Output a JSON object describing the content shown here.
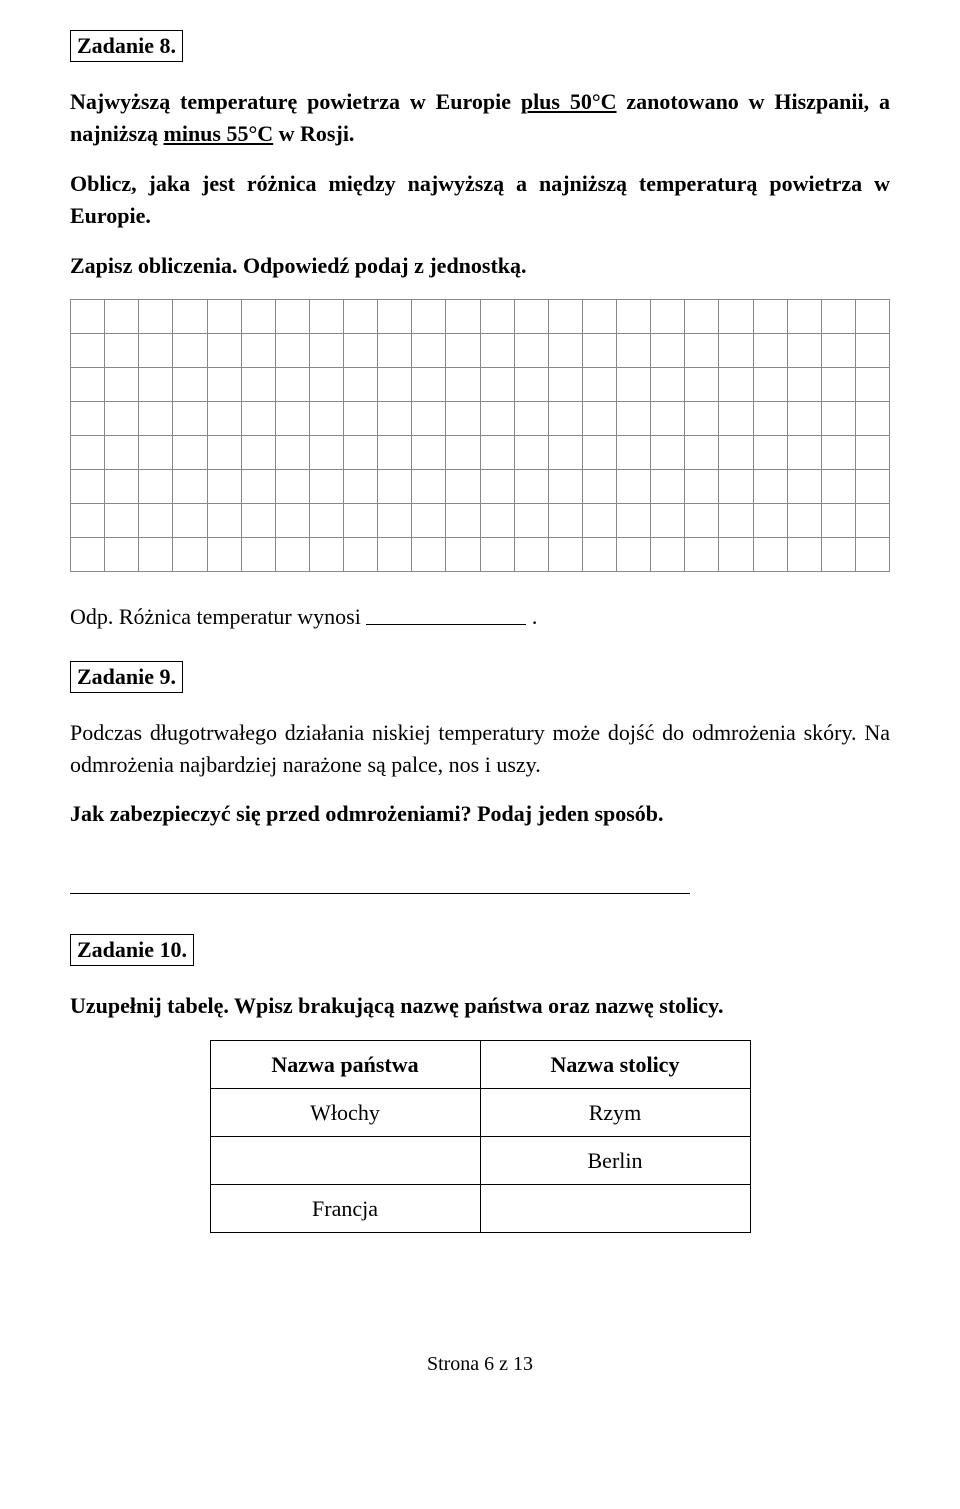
{
  "task8": {
    "label": "Zadanie 8.",
    "prefix": "Najwyższą temperaturę powietrza w Europie ",
    "plus": "plus 50°C",
    "mid1": " zanotowano w Hiszpanii, a najniższą ",
    "minus": "minus 55°C",
    "mid2": " w Rosji.",
    "instr": "Oblicz, jaka jest różnica między najwyższą a najniższą temperaturą powietrza w Europie.",
    "instr2": "Zapisz obliczenia. Odpowiedź podaj z jednostką.",
    "answer": "Odp. Różnica temperatur wynosi ",
    "grid": {
      "rows": 8,
      "cols": 24
    }
  },
  "task9": {
    "label": "Zadanie 9.",
    "p1": "Podczas długotrwałego działania niskiej temperatury może dojść do odmrożenia skóry. Na odmrożenia najbardziej narażone są palce, nos i uszy.",
    "q": "Jak zabezpieczyć się przed odmrożeniami? Podaj jeden sposób."
  },
  "task10": {
    "label": "Zadanie 10.",
    "instr": "Uzupełnij tabelę. Wpisz brakującą nazwę państwa oraz nazwę stolicy.",
    "table": {
      "header_a": "Nazwa państwa",
      "header_b": "Nazwa stolicy",
      "rows": [
        {
          "a": "Włochy",
          "b": "Rzym"
        },
        {
          "a": "",
          "b": "Berlin"
        },
        {
          "a": "Francja",
          "b": ""
        }
      ]
    }
  },
  "footer": "Strona 6 z 13"
}
